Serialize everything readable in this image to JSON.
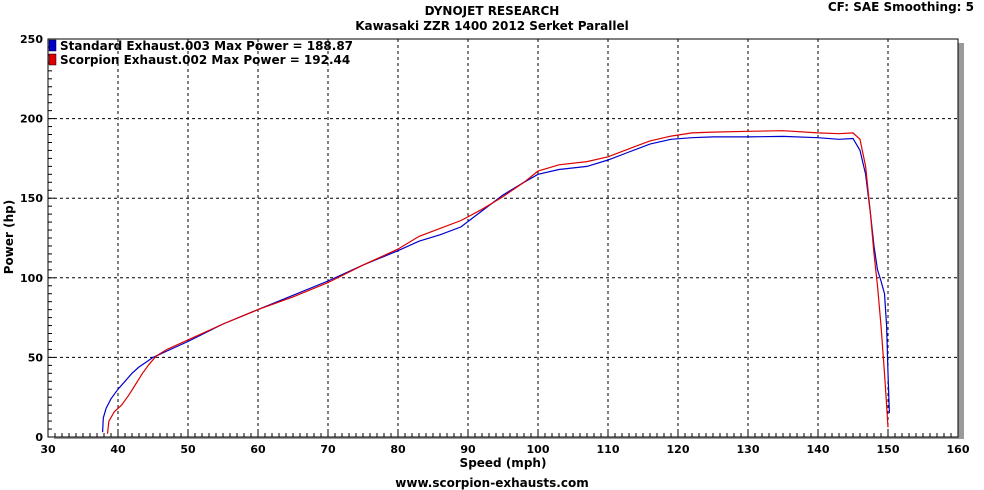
{
  "header": {
    "title": "DYNOJET RESEARCH",
    "subtitle": "Kawasaki ZZR 1400 2012 Serket Parallel",
    "settings": "CF: SAE  Smoothing: 5"
  },
  "footer": {
    "url": "www.scorpion-exhausts.com"
  },
  "chart_data": {
    "type": "line",
    "title": "DYNOJET RESEARCH",
    "subtitle": "Kawasaki ZZR 1400 2012 Serket Parallel",
    "xlabel": "Speed (mph)",
    "ylabel": "Power (hp)",
    "xlim": [
      30,
      160
    ],
    "ylim": [
      0,
      250
    ],
    "xticks": [
      30,
      40,
      50,
      60,
      70,
      80,
      90,
      100,
      110,
      120,
      130,
      140,
      150,
      160
    ],
    "yticks": [
      0,
      50,
      100,
      150,
      200,
      250
    ],
    "grid": true,
    "legend_position": "top-left",
    "series": [
      {
        "name": "Standard Exhaust.003 Max Power = 188.87",
        "color": "#0000cc",
        "x": [
          37.8,
          37.9,
          38.3,
          39,
          40,
          41,
          42,
          43,
          44,
          45,
          47,
          50,
          55,
          60,
          65,
          70,
          75,
          80,
          83,
          86,
          89,
          92,
          95,
          98,
          100,
          103,
          107,
          110,
          113,
          116,
          119,
          122,
          125,
          130,
          135,
          140,
          143,
          145,
          146,
          146.8,
          147.5,
          148,
          148.5,
          149,
          149.5,
          149.8,
          150,
          150.2
        ],
        "y": [
          3,
          12,
          18,
          24,
          30,
          35,
          40,
          44,
          47,
          50,
          54,
          60,
          71,
          80,
          89,
          98,
          108,
          117,
          123,
          127,
          132,
          142,
          152,
          160,
          165,
          168,
          170,
          174,
          179,
          184,
          187,
          188,
          188.5,
          188.5,
          188.8,
          188,
          187,
          187.5,
          180,
          165,
          140,
          120,
          105,
          98,
          90,
          70,
          40,
          15
        ]
      },
      {
        "name": "Scorpion Exhaust.002 Max Power = 192.44",
        "color": "#dd0000",
        "x": [
          38.5,
          38.7,
          39.5,
          40.5,
          41.5,
          42.5,
          43.5,
          44.5,
          45.5,
          47,
          50,
          55,
          60,
          65,
          70,
          75,
          80,
          83,
          86,
          89,
          92,
          95,
          98,
          100,
          103,
          107,
          110,
          113,
          116,
          119,
          122,
          125,
          130,
          135,
          140,
          143,
          145,
          146,
          146.8,
          147.5,
          148,
          148.5,
          149,
          149.5,
          149.8,
          150
        ],
        "y": [
          2,
          10,
          16,
          20,
          26,
          33,
          40,
          46,
          51,
          55,
          61,
          71,
          80,
          88,
          97,
          108,
          118,
          126,
          131,
          136,
          143,
          151,
          160,
          167,
          171,
          173,
          176,
          181,
          186,
          189,
          191,
          191.5,
          192,
          192.4,
          191,
          190.5,
          191,
          187,
          170,
          140,
          115,
          95,
          70,
          40,
          20,
          6
        ]
      }
    ]
  }
}
